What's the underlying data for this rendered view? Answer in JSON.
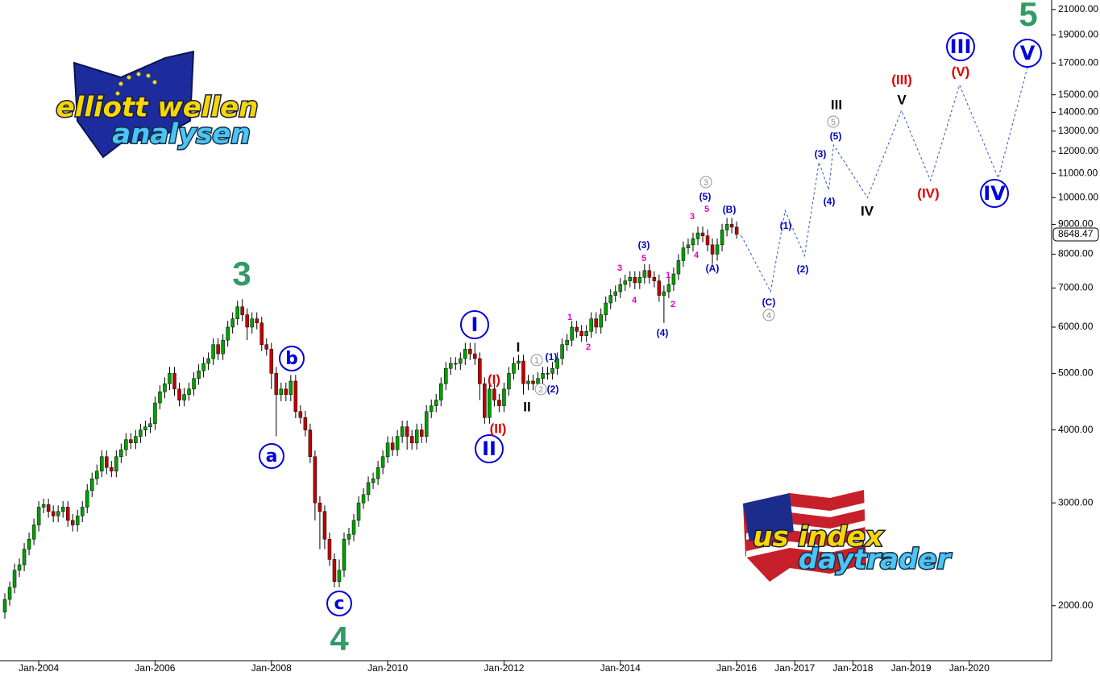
{
  "chart_data": {
    "type": "candlestick",
    "x": [
      "Jun-2003",
      "Jul-2003",
      "Aug-2003",
      "Sep-2003",
      "Oct-2003",
      "Nov-2003",
      "Dec-2003",
      "Jan-2004",
      "Feb-2004",
      "Mar-2004",
      "Apr-2004",
      "May-2004",
      "Jun-2004",
      "Jul-2004",
      "Aug-2004",
      "Sep-2004",
      "Oct-2004",
      "Nov-2004",
      "Dec-2004",
      "Jan-2005",
      "Feb-2005",
      "Mar-2005",
      "Apr-2005",
      "May-2005",
      "Jun-2005",
      "Jul-2005",
      "Aug-2005",
      "Sep-2005",
      "Oct-2005",
      "Nov-2005",
      "Dec-2005",
      "Jan-2006",
      "Feb-2006",
      "Mar-2006",
      "Apr-2006",
      "May-2006",
      "Jun-2006",
      "Jul-2006",
      "Aug-2006",
      "Sep-2006",
      "Oct-2006",
      "Nov-2006",
      "Dec-2006",
      "Jan-2007",
      "Feb-2007",
      "Mar-2007",
      "Apr-2007",
      "May-2007",
      "Jun-2007",
      "Jul-2007",
      "Aug-2007",
      "Sep-2007",
      "Oct-2007",
      "Nov-2007",
      "Dec-2007",
      "Jan-2008",
      "Feb-2008",
      "Mar-2008",
      "Apr-2008",
      "May-2008",
      "Jun-2008",
      "Jul-2008",
      "Aug-2008",
      "Sep-2008",
      "Oct-2008",
      "Nov-2008",
      "Dec-2008",
      "Jan-2009",
      "Feb-2009",
      "Mar-2009",
      "Apr-2009",
      "May-2009",
      "Jun-2009",
      "Jul-2009",
      "Aug-2009",
      "Sep-2009",
      "Oct-2009",
      "Nov-2009",
      "Dec-2009",
      "Jan-2010",
      "Feb-2010",
      "Mar-2010",
      "Apr-2010",
      "May-2010",
      "Jun-2010",
      "Jul-2010",
      "Aug-2010",
      "Sep-2010",
      "Oct-2010",
      "Nov-2010",
      "Dec-2010",
      "Jan-2011",
      "Feb-2011",
      "Mar-2011",
      "Apr-2011",
      "May-2011",
      "Jun-2011",
      "Jul-2011",
      "Aug-2011",
      "Sep-2011",
      "Oct-2011",
      "Nov-2011",
      "Dec-2011",
      "Jan-2012",
      "Feb-2012",
      "Mar-2012",
      "Apr-2012",
      "May-2012",
      "Jun-2012",
      "Jul-2012",
      "Aug-2012",
      "Sep-2012",
      "Oct-2012",
      "Nov-2012",
      "Dec-2012",
      "Jan-2013",
      "Feb-2013",
      "Mar-2013",
      "Apr-2013",
      "May-2013",
      "Jun-2013",
      "Jul-2013",
      "Aug-2013",
      "Sep-2013",
      "Oct-2013",
      "Nov-2013",
      "Dec-2013",
      "Jan-2014",
      "Feb-2014",
      "Mar-2014",
      "Apr-2014",
      "May-2014",
      "Jun-2014",
      "Jul-2014",
      "Aug-2014",
      "Sep-2014",
      "Oct-2014",
      "Nov-2014",
      "Dec-2014",
      "Jan-2015",
      "Feb-2015",
      "Mar-2015",
      "Apr-2015",
      "May-2015",
      "Jun-2015",
      "Jul-2015",
      "Aug-2015",
      "Sep-2015",
      "Oct-2015",
      "Nov-2015",
      "Dec-2015",
      "Jan-2016"
    ],
    "open": [
      1950,
      2050,
      2150,
      2300,
      2350,
      2500,
      2600,
      2750,
      2950,
      2980,
      2900,
      2850,
      2900,
      2950,
      2800,
      2750,
      2850,
      2950,
      3150,
      3300,
      3400,
      3600,
      3450,
      3400,
      3600,
      3700,
      3850,
      3800,
      3900,
      4000,
      4050,
      4100,
      4450,
      4650,
      4800,
      5000,
      4700,
      4500,
      4600,
      4700,
      4900,
      5050,
      5200,
      5300,
      5600,
      5400,
      5700,
      6000,
      6200,
      6500,
      6300,
      6000,
      6200,
      6100,
      5600,
      5500,
      5000,
      4600,
      4700,
      4600,
      4850,
      4300,
      4200,
      4000,
      3600,
      3000,
      2900,
      2600,
      2400,
      2200,
      2300,
      2600,
      2650,
      2800,
      3000,
      3100,
      3250,
      3300,
      3450,
      3600,
      3800,
      3700,
      3900,
      4050,
      3900,
      3800,
      4000,
      3900,
      4300,
      4400,
      4500,
      4800,
      5100,
      5200,
      5200,
      5300,
      5500,
      5400,
      5300,
      4800,
      4200,
      4700,
      4500,
      4400,
      4700,
      5000,
      5200,
      5250,
      4800,
      4850,
      4800,
      4900,
      5000,
      5000,
      5100,
      5300,
      5600,
      5700,
      6000,
      5900,
      5800,
      5900,
      6200,
      6000,
      6300,
      6600,
      6800,
      6900,
      7100,
      7200,
      7300,
      7150,
      7300,
      7500,
      7300,
      7200,
      6800,
      6900,
      7100,
      7400,
      7800,
      8200,
      8300,
      8500,
      8700,
      8600,
      8300,
      8000,
      8300,
      8800,
      9000,
      8900
    ],
    "high": [
      2100,
      2200,
      2360,
      2410,
      2560,
      2670,
      2820,
      3020,
      3050,
      3050,
      2970,
      2970,
      3020,
      3020,
      2870,
      2920,
      3020,
      3230,
      3380,
      3490,
      3690,
      3690,
      3540,
      3690,
      3790,
      3950,
      3950,
      4000,
      4100,
      4150,
      4200,
      4560,
      4770,
      4920,
      5130,
      5130,
      4820,
      4720,
      4820,
      5020,
      5180,
      5330,
      5430,
      5740,
      5740,
      5840,
      6150,
      6360,
      6660,
      6700,
      6460,
      6360,
      6360,
      6250,
      5740,
      5640,
      5130,
      4820,
      4820,
      4970,
      4970,
      4410,
      4310,
      4100,
      3690,
      3080,
      2970,
      2670,
      2460,
      2400,
      2670,
      2720,
      2870,
      3080,
      3180,
      3330,
      3380,
      3540,
      3690,
      3900,
      3900,
      4000,
      4150,
      4150,
      4000,
      4100,
      4100,
      4410,
      4510,
      4610,
      4920,
      5230,
      5330,
      5330,
      5430,
      5640,
      5640,
      5640,
      5430,
      4920,
      4820,
      4820,
      4610,
      4820,
      5130,
      5330,
      5380,
      5380,
      4970,
      4970,
      5020,
      5130,
      5130,
      5230,
      5430,
      5740,
      5840,
      6150,
      6150,
      6050,
      6050,
      6360,
      6360,
      6460,
      6770,
      6970,
      7070,
      7280,
      7380,
      7480,
      7480,
      7480,
      7690,
      7690,
      7480,
      7380,
      7070,
      7280,
      7590,
      8000,
      8410,
      8510,
      8710,
      8920,
      8920,
      8820,
      8510,
      8510,
      9020,
      9230,
      9230,
      9100
    ],
    "low": [
      1900,
      2000,
      2100,
      2240,
      2290,
      2440,
      2540,
      2680,
      2880,
      2830,
      2780,
      2780,
      2830,
      2730,
      2680,
      2680,
      2780,
      2880,
      3070,
      3220,
      3320,
      3360,
      3320,
      3320,
      3510,
      3610,
      3710,
      3710,
      3800,
      3900,
      3950,
      4000,
      4340,
      4530,
      4680,
      4580,
      4390,
      4390,
      4490,
      4580,
      4780,
      4920,
      5070,
      5170,
      5270,
      5270,
      5560,
      5850,
      6050,
      6140,
      5700,
      5850,
      5950,
      5460,
      5360,
      4700,
      3900,
      4480,
      4480,
      4480,
      4190,
      4100,
      3900,
      3510,
      2800,
      2500,
      2500,
      2340,
      2150,
      2150,
      2240,
      2540,
      2580,
      2730,
      2930,
      3020,
      3170,
      3220,
      3360,
      3510,
      3610,
      3610,
      3800,
      3700,
      3700,
      3700,
      3800,
      3800,
      4190,
      4290,
      4390,
      4680,
      4970,
      5070,
      5070,
      5170,
      5270,
      5170,
      4500,
      4100,
      4100,
      4390,
      4290,
      4290,
      4580,
      4880,
      5070,
      4600,
      4680,
      4680,
      4680,
      4780,
      4880,
      4880,
      4970,
      5170,
      5460,
      5560,
      5750,
      5660,
      5660,
      5750,
      5850,
      5850,
      6140,
      6440,
      6630,
      6730,
      6920,
      7020,
      6970,
      6970,
      7120,
      7120,
      7020,
      6630,
      6100,
      6730,
      6920,
      7220,
      7610,
      8000,
      8090,
      8290,
      8390,
      8090,
      7700,
      7800,
      8090,
      8580,
      8680,
      8500
    ],
    "close": [
      2050,
      2150,
      2300,
      2350,
      2500,
      2600,
      2750,
      2950,
      2980,
      2900,
      2850,
      2900,
      2950,
      2800,
      2750,
      2850,
      2950,
      3150,
      3300,
      3400,
      3600,
      3450,
      3400,
      3600,
      3700,
      3850,
      3800,
      3900,
      4000,
      4050,
      4100,
      4450,
      4650,
      4800,
      5000,
      4700,
      4500,
      4600,
      4700,
      4900,
      5050,
      5200,
      5300,
      5600,
      5400,
      5700,
      6000,
      6200,
      6500,
      6300,
      6000,
      6200,
      6100,
      5600,
      5500,
      5000,
      4600,
      4700,
      4600,
      4850,
      4300,
      4200,
      4000,
      3600,
      3000,
      2900,
      2600,
      2400,
      2200,
      2300,
      2600,
      2650,
      2800,
      3000,
      3100,
      3250,
      3300,
      3450,
      3600,
      3800,
      3700,
      3900,
      4050,
      3900,
      3800,
      4000,
      3900,
      4300,
      4400,
      4500,
      4800,
      5100,
      5200,
      5200,
      5300,
      5500,
      5400,
      5300,
      4800,
      4200,
      4700,
      4500,
      4400,
      4700,
      5000,
      5200,
      5250,
      4800,
      4850,
      4800,
      4900,
      5000,
      5000,
      5100,
      5300,
      5600,
      5700,
      6000,
      5900,
      5800,
      5900,
      6200,
      6000,
      6300,
      6600,
      6800,
      6900,
      7100,
      7200,
      7300,
      7150,
      7300,
      7500,
      7300,
      7200,
      6800,
      6900,
      7100,
      7400,
      7800,
      8200,
      8300,
      8500,
      8700,
      8600,
      8300,
      8000,
      8300,
      8800,
      9000,
      8900,
      8648.47
    ],
    "up_color": "#00a000",
    "down_color": "#c00000",
    "wick_color": "#000000",
    "log_scale": true,
    "ylim": [
      1610,
      21800
    ],
    "yticks": [
      {
        "value": 2000,
        "label": "2000.00"
      },
      {
        "value": 3000,
        "label": "3000.00"
      },
      {
        "value": 4000,
        "label": "4000.00"
      },
      {
        "value": 5000,
        "label": "5000.00"
      },
      {
        "value": 6000,
        "label": "6000.00"
      },
      {
        "value": 7000,
        "label": "7000.00"
      },
      {
        "value": 8000,
        "label": "8000.00"
      },
      {
        "value": 9000,
        "label": "9000.00"
      },
      {
        "value": 10000,
        "label": "10000.00"
      },
      {
        "value": 11000,
        "label": "11000.00"
      },
      {
        "value": 12000,
        "label": "12000.00"
      },
      {
        "value": 13000,
        "label": "13000.00"
      },
      {
        "value": 14000,
        "label": "14000.00"
      },
      {
        "value": 15000,
        "label": "15000.00"
      },
      {
        "value": 17000,
        "label": "17000.00"
      },
      {
        "value": 19000,
        "label": "19000.00"
      },
      {
        "value": 21000,
        "label": "21000.00"
      }
    ],
    "xlim": [
      "May-2003",
      "Jun-2021"
    ],
    "xticks": [
      "Jan-2004",
      "Jan-2006",
      "Jan-2008",
      "Jan-2010",
      "Jan-2012",
      "Jan-2014",
      "Jan-2016",
      "Jan-2017",
      "Jan-2018",
      "Jan-2019",
      "Jan-2020"
    ],
    "projection": {
      "color": "#3050d0",
      "x": [
        "Feb-2016",
        "Aug-2016",
        "Nov-2016",
        "Mar-2017",
        "Jun-2017",
        "Aug-2017",
        "Sep-2017",
        "Apr-2018",
        "Nov-2018",
        "May-2019",
        "Nov-2019",
        "Jul-2020",
        "Jan-2021"
      ],
      "values": [
        8600,
        6900,
        9500,
        7950,
        11500,
        10300,
        12300,
        10000,
        14100,
        10700,
        15600,
        10800,
        16700
      ]
    },
    "annotations": [
      {
        "text": "3",
        "color": "#339966",
        "style": "big"
      },
      {
        "text": "4",
        "color": "#339966",
        "style": "big"
      },
      {
        "text": "5",
        "color": "#339966",
        "style": "big"
      },
      {
        "text": "a",
        "color": "#0000e0",
        "style": "circle"
      },
      {
        "text": "b",
        "color": "#0000e0",
        "style": "circle"
      },
      {
        "text": "c",
        "color": "#0000e0",
        "style": "circle"
      },
      {
        "text": "I",
        "color": "#0000e0",
        "style": "circle-large"
      },
      {
        "text": "II",
        "color": "#0000e0",
        "style": "circle-large"
      },
      {
        "text": "III",
        "color": "#0000e0",
        "style": "circle-large"
      },
      {
        "text": "IV",
        "color": "#0000e0",
        "style": "circle-large"
      },
      {
        "text": "V",
        "color": "#0000e0",
        "style": "circle-large"
      },
      {
        "text": "(I)",
        "color": "#e00000",
        "style": "bold"
      },
      {
        "text": "(II)",
        "color": "#e00000",
        "style": "bold"
      },
      {
        "text": "(III)",
        "color": "#e00000",
        "style": "bold"
      },
      {
        "text": "(IV)",
        "color": "#e00000",
        "style": "bold"
      },
      {
        "text": "(V)",
        "color": "#e00000",
        "style": "bold"
      },
      {
        "text": "I",
        "color": "#000000",
        "style": "bold"
      },
      {
        "text": "II",
        "color": "#000000",
        "style": "bold"
      },
      {
        "text": "III",
        "color": "#000000",
        "style": "bold"
      },
      {
        "text": "IV",
        "color": "#000000",
        "style": "bold"
      },
      {
        "text": "V",
        "color": "#000000",
        "style": "bold"
      },
      {
        "text": "(1)",
        "color": "#0000c0",
        "style": "small"
      },
      {
        "text": "(2)",
        "color": "#0000c0",
        "style": "small"
      },
      {
        "text": "(3)",
        "color": "#0000c0",
        "style": "small"
      },
      {
        "text": "(4)",
        "color": "#0000c0",
        "style": "small"
      },
      {
        "text": "(5)",
        "color": "#0000c0",
        "style": "small"
      },
      {
        "text": "(A)",
        "color": "#0000c0",
        "style": "small"
      },
      {
        "text": "(B)",
        "color": "#0000c0",
        "style": "small"
      },
      {
        "text": "(C)",
        "color": "#0000c0",
        "style": "small"
      },
      {
        "text": "(1)",
        "color": "#0000c0",
        "style": "small"
      },
      {
        "text": "(2)",
        "color": "#0000c0",
        "style": "small"
      },
      {
        "text": "(3)",
        "color": "#0000c0",
        "style": "small"
      },
      {
        "text": "(4)",
        "color": "#0000c0",
        "style": "small"
      },
      {
        "text": "(5)",
        "color": "#0000c0",
        "style": "small"
      },
      {
        "text": "1",
        "color": "#909090",
        "style": "grey-circle"
      },
      {
        "text": "2",
        "color": "#909090",
        "style": "grey-circle"
      },
      {
        "text": "3",
        "color": "#909090",
        "style": "grey-circle"
      },
      {
        "text": "4",
        "color": "#909090",
        "style": "grey-circle"
      },
      {
        "text": "5",
        "color": "#909090",
        "style": "grey-circle"
      },
      {
        "text": "1",
        "color": "#e000c0",
        "style": "tiny"
      },
      {
        "text": "2",
        "color": "#e000c0",
        "style": "tiny"
      },
      {
        "text": "3",
        "color": "#e000c0",
        "style": "tiny"
      },
      {
        "text": "4",
        "color": "#e000c0",
        "style": "tiny"
      },
      {
        "text": "5",
        "color": "#e000c0",
        "style": "tiny"
      },
      {
        "text": "1",
        "color": "#e000c0",
        "style": "tiny"
      },
      {
        "text": "2",
        "color": "#e000c0",
        "style": "tiny"
      },
      {
        "text": "3",
        "color": "#e000c0",
        "style": "tiny"
      },
      {
        "text": "4",
        "color": "#e000c0",
        "style": "tiny"
      },
      {
        "text": "5",
        "color": "#e000c0",
        "style": "tiny"
      }
    ]
  },
  "logos": [
    {
      "line1": "elliott wellen",
      "line2": "analysen"
    },
    {
      "line1": "us index",
      "line2": "daytrader"
    }
  ]
}
